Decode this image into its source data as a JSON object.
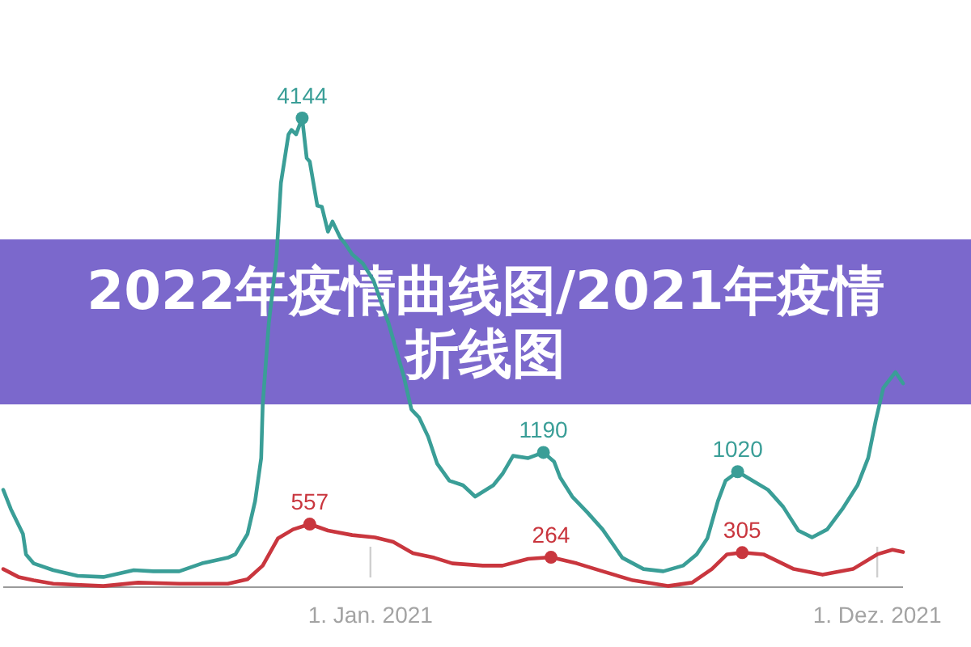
{
  "chart_data": {
    "type": "line",
    "title": "2022年疫情曲线图/2021年疫情折线图",
    "xlim": [
      "2020-05-04",
      "2021-12-18"
    ],
    "xticks": [
      {
        "value": "2021-01-01",
        "label": "1. Jan. 2021"
      },
      {
        "value": "2021-12-01",
        "label": "1. Dez. 2021"
      }
    ],
    "line_style": "solid",
    "series": [
      {
        "color": "#3a9e97",
        "x": [
          "2020-05-04",
          "2020-05-09",
          "2020-05-17",
          "2020-05-19",
          "2020-05-24",
          "2020-06-06",
          "2020-06-22",
          "2020-07-09",
          "2020-07-29",
          "2020-08-11",
          "2020-08-28",
          "2020-09-12",
          "2020-09-29",
          "2020-10-04",
          "2020-10-12",
          "2020-10-17",
          "2020-10-21",
          "2020-10-22",
          "2020-10-26",
          "2020-10-31",
          "2020-11-03",
          "2020-11-08",
          "2020-11-10",
          "2020-11-13",
          "2020-11-17",
          "2020-11-20",
          "2020-11-22",
          "2020-11-27",
          "2020-11-30",
          "2020-12-04",
          "2020-12-07",
          "2020-12-12",
          "2020-12-15",
          "2020-12-20",
          "2020-12-27",
          "2021-01-03",
          "2021-01-13",
          "2021-01-23",
          "2021-01-28",
          "2021-02-02",
          "2021-02-08",
          "2021-02-14",
          "2021-02-22",
          "2021-03-03",
          "2021-03-11",
          "2021-03-23",
          "2021-03-29",
          "2021-04-05",
          "2021-04-15",
          "2021-04-25",
          "2021-05-02",
          "2021-05-06",
          "2021-05-14",
          "2021-05-24",
          "2021-06-03",
          "2021-06-16",
          "2021-06-30",
          "2021-07-13",
          "2021-07-26",
          "2021-08-04",
          "2021-08-11",
          "2021-08-18",
          "2021-08-23",
          "2021-08-31",
          "2021-09-10",
          "2021-09-20",
          "2021-09-30",
          "2021-10-10",
          "2021-10-19",
          "2021-10-29",
          "2021-11-08",
          "2021-11-18",
          "2021-11-25",
          "2021-11-30",
          "2021-12-05",
          "2021-12-13",
          "2021-12-18"
        ],
        "values": [
          860,
          690,
          470,
          290,
          210,
          150,
          100,
          90,
          150,
          140,
          140,
          210,
          260,
          290,
          470,
          760,
          1140,
          1610,
          2330,
          2900,
          3570,
          4000,
          4040,
          4000,
          4144,
          3790,
          3760,
          3370,
          3360,
          3140,
          3230,
          3090,
          3040,
          2940,
          2860,
          2710,
          2330,
          1860,
          1570,
          1500,
          1330,
          1090,
          940,
          900,
          800,
          900,
          1000,
          1160,
          1140,
          1190,
          1110,
          970,
          800,
          660,
          510,
          260,
          160,
          140,
          190,
          290,
          430,
          760,
          940,
          1020,
          940,
          860,
          710,
          500,
          440,
          510,
          690,
          900,
          1140,
          1470,
          1760,
          1900,
          1800
        ],
        "value_labels": [
          null,
          null,
          null,
          null,
          null,
          null,
          null,
          null,
          null,
          null,
          null,
          null,
          null,
          null,
          null,
          null,
          null,
          null,
          null,
          null,
          null,
          null,
          null,
          null,
          "4144",
          null,
          null,
          null,
          null,
          null,
          null,
          null,
          null,
          null,
          null,
          null,
          null,
          null,
          null,
          null,
          null,
          null,
          null,
          null,
          null,
          null,
          null,
          null,
          null,
          "1190",
          null,
          null,
          null,
          null,
          null,
          null,
          null,
          null,
          null,
          null,
          null,
          null,
          null,
          "1020",
          null,
          null,
          null,
          null,
          null,
          null,
          null,
          null,
          null,
          null,
          null,
          null,
          null
        ]
      },
      {
        "color": "#c9363e",
        "x": [
          "2020-05-04",
          "2020-05-14",
          "2020-05-24",
          "2020-06-06",
          "2020-07-09",
          "2020-08-01",
          "2020-08-28",
          "2020-09-29",
          "2020-10-12",
          "2020-10-22",
          "2020-11-01",
          "2020-11-11",
          "2020-11-22",
          "2020-12-04",
          "2020-12-20",
          "2021-01-04",
          "2021-01-16",
          "2021-01-29",
          "2021-02-12",
          "2021-02-24",
          "2021-03-16",
          "2021-03-29",
          "2021-04-15",
          "2021-04-30",
          "2021-05-17",
          "2021-06-03",
          "2021-06-23",
          "2021-07-16",
          "2021-08-01",
          "2021-08-14",
          "2021-08-24",
          "2021-09-03",
          "2021-09-17",
          "2021-10-07",
          "2021-10-26",
          "2021-11-15",
          "2021-12-01",
          "2021-12-11",
          "2021-12-18"
        ],
        "values": [
          160,
          90,
          60,
          30,
          10,
          40,
          30,
          30,
          70,
          190,
          430,
          510,
          557,
          500,
          460,
          440,
          400,
          300,
          260,
          210,
          190,
          190,
          250,
          264,
          210,
          140,
          60,
          10,
          40,
          160,
          290,
          305,
          290,
          160,
          110,
          160,
          290,
          330,
          310
        ],
        "value_labels": [
          null,
          null,
          null,
          null,
          null,
          null,
          null,
          null,
          null,
          null,
          null,
          null,
          "557",
          null,
          null,
          null,
          null,
          null,
          null,
          null,
          null,
          null,
          null,
          "264",
          null,
          null,
          null,
          null,
          null,
          null,
          null,
          "305",
          null,
          null,
          null,
          null,
          null,
          null,
          null
        ]
      }
    ]
  }
}
